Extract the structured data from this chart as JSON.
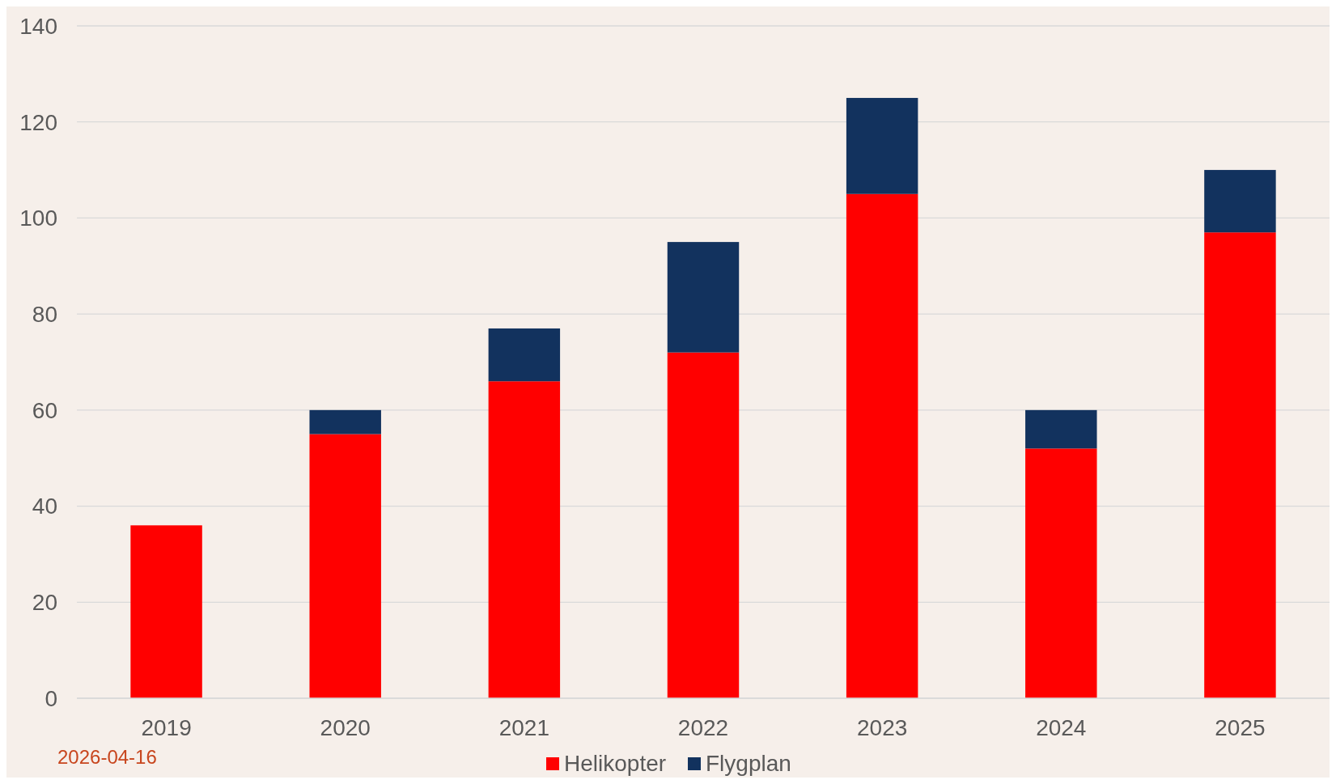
{
  "chart_data": {
    "type": "bar",
    "stacked": true,
    "categories": [
      "2019",
      "2020",
      "2021",
      "2022",
      "2023",
      "2024",
      "2025"
    ],
    "series": [
      {
        "name": "Helikopter",
        "color": "#ff0000",
        "values": [
          36,
          55,
          66,
          72,
          105,
          52,
          97
        ]
      },
      {
        "name": "Flygplan",
        "color": "#12325e",
        "values": [
          0,
          5,
          11,
          23,
          20,
          8,
          13
        ]
      }
    ],
    "ylim": [
      0,
      140
    ],
    "yticks": [
      0,
      20,
      40,
      60,
      80,
      100,
      120,
      140
    ],
    "grid": "y",
    "legend": "bottom",
    "annotations": [
      "2026-04-16"
    ]
  }
}
